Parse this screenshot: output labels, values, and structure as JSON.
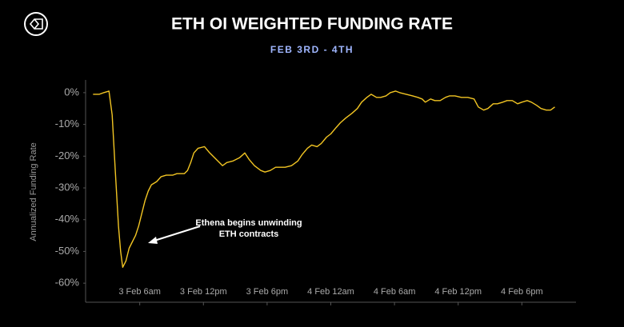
{
  "chart_data": {
    "type": "line",
    "title": "ETH OI WEIGHTED FUNDING RATE",
    "subtitle": "FEB 3RD - 4TH",
    "y_label": "Annualized Funding Rate",
    "annotation": [
      "Ethena begins unwinding",
      "ETH contracts"
    ],
    "color": "#f2c523",
    "x": [
      1.6,
      2.2,
      2.6,
      3.1,
      3.4,
      3.7,
      4.0,
      4.2,
      4.4,
      4.7,
      5.0,
      5.3,
      5.6,
      5.9,
      6.2,
      6.5,
      6.8,
      7.1,
      7.6,
      8.0,
      8.5,
      9.1,
      9.5,
      10.2,
      10.5,
      10.8,
      11.1,
      11.5,
      12.1,
      12.6,
      13.2,
      13.8,
      14.2,
      14.8,
      15.4,
      15.9,
      16.3,
      16.8,
      17.4,
      17.8,
      18.3,
      18.8,
      19.2,
      19.7,
      20.3,
      20.9,
      21.3,
      21.8,
      22.2,
      22.7,
      23.1,
      23.6,
      24.0,
      24.5,
      24.9,
      25.4,
      26.0,
      26.5,
      26.9,
      27.4,
      27.8,
      28.3,
      28.7,
      29.2,
      29.6,
      30.1,
      30.5,
      31.1,
      31.7,
      32.2,
      32.6,
      32.9,
      33.4,
      33.8,
      34.3,
      34.8,
      35.2,
      35.7,
      36.3,
      36.9,
      37.5,
      37.9,
      38.4,
      38.8,
      39.3,
      39.7,
      40.2,
      40.6,
      41.1,
      41.6,
      42.0,
      42.5,
      42.9,
      43.4,
      43.8,
      44.3,
      44.7,
      45.1
    ],
    "values": [
      -0.5,
      -0.5,
      0,
      0.5,
      -7,
      -25,
      -42,
      -50,
      -55,
      -53,
      -49,
      -47,
      -45,
      -42,
      -38,
      -34,
      -31,
      -29,
      -28,
      -26.5,
      -26,
      -26,
      -25.5,
      -25.5,
      -24.5,
      -22,
      -19,
      -17.5,
      -17,
      -19,
      -21,
      -23,
      -22,
      -21.5,
      -20.5,
      -19,
      -21,
      -23,
      -24.5,
      -25,
      -24.5,
      -23.5,
      -23.5,
      -23.5,
      -23,
      -21.5,
      -19.5,
      -17.5,
      -16.5,
      -17,
      -16,
      -14,
      -13,
      -11,
      -9.5,
      -8,
      -6.5,
      -5,
      -3,
      -1.5,
      -0.5,
      -1.5,
      -1.5,
      -1,
      0,
      0.5,
      0,
      -0.5,
      -1,
      -1.5,
      -2,
      -3,
      -2,
      -2.5,
      -2.5,
      -1.5,
      -1,
      -1,
      -1.5,
      -1.5,
      -2,
      -4.5,
      -5.5,
      -5,
      -3.5,
      -3.5,
      -3,
      -2.5,
      -2.5,
      -3.5,
      -3,
      -2.5,
      -3,
      -4,
      -5,
      -5.5,
      -5.5,
      -4.5
    ],
    "xlim": [
      0.9,
      47.1
    ],
    "xticks": [
      {
        "value": 6,
        "label": "3 Feb 6am"
      },
      {
        "value": 12,
        "label": "3 Feb 12pm"
      },
      {
        "value": 18,
        "label": "3 Feb 6pm"
      },
      {
        "value": 24,
        "label": "4 Feb 12am"
      },
      {
        "value": 30,
        "label": "4 Feb 6am"
      },
      {
        "value": 36,
        "label": "4 Feb 12pm"
      },
      {
        "value": 42,
        "label": "4 Feb 6pm"
      }
    ],
    "ylim": [
      -66,
      4
    ],
    "yticks": [
      {
        "value": 0,
        "label": "0%"
      },
      {
        "value": -10,
        "label": "-10%"
      },
      {
        "value": -20,
        "label": "-20%"
      },
      {
        "value": -30,
        "label": "-30%"
      },
      {
        "value": -40,
        "label": "-40%"
      },
      {
        "value": -50,
        "label": "-50%"
      },
      {
        "value": -60,
        "label": "-60%"
      }
    ]
  }
}
